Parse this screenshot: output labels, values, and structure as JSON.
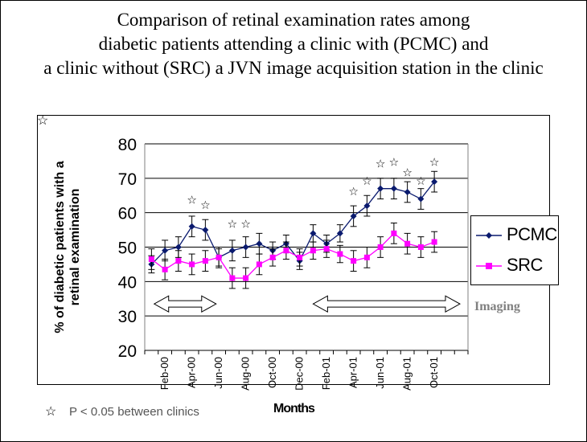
{
  "title_lines": [
    "Comparison of retinal examination rates among",
    "diabetic patients attending a clinic with (PCMC) and",
    "a clinic without (SRC) a JVN image acquisition station in the clinic"
  ],
  "imaging_label": "Imaging",
  "footnote": {
    "star_icon": "☆",
    "text": "P < 0.05 between clinics"
  },
  "chart_data": {
    "type": "line",
    "title": "Comparison of retinal examination rates among diabetic patients attending a clinic with (PCMC) and a clinic without (SRC) a JVN image acquisition station in the clinic",
    "xlabel": "Months",
    "ylabel_lines": [
      "% of diabetic patients with a",
      "retinal examination"
    ],
    "ylim": [
      20,
      80
    ],
    "yticks": [
      20,
      30,
      40,
      50,
      60,
      70,
      80
    ],
    "grid": true,
    "legend_position": "right",
    "tick_labels": [
      {
        "index": 1,
        "label": "Feb-00"
      },
      {
        "index": 3,
        "label": "Apr-00"
      },
      {
        "index": 5,
        "label": "Jun-00"
      },
      {
        "index": 7,
        "label": "Aug-00"
      },
      {
        "index": 9,
        "label": "Oct-00"
      },
      {
        "index": 11,
        "label": "Dec-00"
      },
      {
        "index": 13,
        "label": "Feb-01"
      },
      {
        "index": 15,
        "label": "Apr-01"
      },
      {
        "index": 17,
        "label": "Jun-01"
      },
      {
        "index": 19,
        "label": "Aug-01"
      },
      {
        "index": 21,
        "label": "Oct-01"
      }
    ],
    "point_count": 24,
    "series": [
      {
        "name": "PCMC",
        "color": "#0a1a6e",
        "marker": "diamond",
        "values": [
          45,
          49,
          50,
          56,
          55,
          47,
          49,
          50,
          51,
          49,
          51,
          46,
          54,
          51,
          54,
          59,
          62,
          67,
          67,
          66,
          64,
          69
        ],
        "errors": [
          2.5,
          3,
          3,
          3,
          3,
          2.5,
          3,
          3,
          3,
          2.5,
          2.5,
          2.5,
          2.5,
          2.5,
          2.5,
          3,
          3,
          3,
          3,
          3,
          3,
          3
        ]
      },
      {
        "name": "SRC",
        "color": "#ff00ff",
        "marker": "square",
        "values": [
          46.5,
          43.5,
          46,
          45,
          46,
          47,
          41,
          41,
          45,
          47,
          49,
          47,
          49,
          49.5,
          48,
          46,
          47,
          50,
          54,
          51,
          50,
          51.5
        ],
        "errors": [
          3,
          3,
          3,
          3,
          3,
          3,
          3,
          3,
          3,
          2.5,
          2.5,
          2.5,
          2.5,
          2.5,
          2.5,
          3,
          3,
          3,
          3,
          3,
          3,
          3
        ]
      }
    ],
    "significance_stars": [
      {
        "index": 3,
        "y": 64
      },
      {
        "index": 4,
        "y": 62.5
      },
      {
        "index": 6,
        "y": 57
      },
      {
        "index": 7,
        "y": 57
      },
      {
        "index": 15,
        "y": 66.5
      },
      {
        "index": 16,
        "y": 69.5
      },
      {
        "index": 17,
        "y": 74.5
      },
      {
        "index": 18,
        "y": 75
      },
      {
        "index": 19,
        "y": 72
      },
      {
        "index": 20,
        "y": 69.5
      },
      {
        "index": 21,
        "y": 75
      }
    ],
    "imaging_periods": [
      {
        "start": 0.7,
        "end": 5.3
      },
      {
        "start": 12.5,
        "end": 23.4
      }
    ],
    "imaging_arrow_y": 33.5
  }
}
